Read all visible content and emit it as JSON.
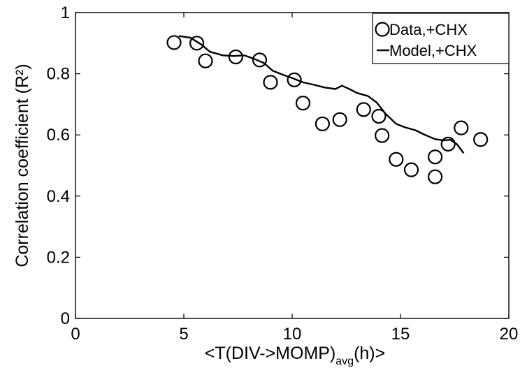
{
  "chart_data": {
    "type": "scatter",
    "title": "",
    "xlabel_main": "<T(DIV->MOMP)",
    "xlabel_sub": "avg",
    "xlabel_tail": "(h)>",
    "ylabel": "Correlation coefficient (R²)",
    "xlim": [
      0,
      20
    ],
    "ylim": [
      0,
      1
    ],
    "x_ticks": [
      0,
      5,
      10,
      15,
      20
    ],
    "y_ticks": [
      0,
      0.2,
      0.4,
      0.6,
      0.8,
      1
    ],
    "x_tick_labels": [
      "0",
      "5",
      "10",
      "15",
      "20"
    ],
    "y_tick_labels": [
      "0",
      "0.2",
      "0.4",
      "0.6",
      "0.8",
      "1"
    ],
    "grid": false,
    "legend": {
      "placement": "top-right",
      "entries": [
        {
          "label": "Data,+CHX",
          "marker": "circle"
        },
        {
          "label": "Model,+CHX",
          "marker": "line"
        }
      ]
    },
    "series": [
      {
        "name": "Data,+CHX",
        "type": "scatter",
        "points": [
          [
            4.55,
            0.902
          ],
          [
            5.6,
            0.9
          ],
          [
            6.0,
            0.842
          ],
          [
            7.4,
            0.855
          ],
          [
            8.5,
            0.845
          ],
          [
            9.0,
            0.772
          ],
          [
            10.1,
            0.78
          ],
          [
            10.5,
            0.704
          ],
          [
            11.4,
            0.636
          ],
          [
            12.2,
            0.65
          ],
          [
            13.3,
            0.683
          ],
          [
            14.0,
            0.661
          ],
          [
            14.15,
            0.598
          ],
          [
            14.8,
            0.52
          ],
          [
            15.5,
            0.486
          ],
          [
            16.6,
            0.528
          ],
          [
            16.6,
            0.463
          ],
          [
            17.2,
            0.57
          ],
          [
            17.8,
            0.623
          ],
          [
            18.7,
            0.585
          ]
        ]
      },
      {
        "name": "Model,+CHX",
        "type": "line",
        "points": [
          [
            4.8,
            0.923
          ],
          [
            5.3,
            0.918
          ],
          [
            5.8,
            0.896
          ],
          [
            6.2,
            0.872
          ],
          [
            6.8,
            0.86
          ],
          [
            7.3,
            0.858
          ],
          [
            7.8,
            0.86
          ],
          [
            8.2,
            0.85
          ],
          [
            8.7,
            0.835
          ],
          [
            9.1,
            0.81
          ],
          [
            9.6,
            0.796
          ],
          [
            10.0,
            0.786
          ],
          [
            10.5,
            0.772
          ],
          [
            11.0,
            0.764
          ],
          [
            11.5,
            0.755
          ],
          [
            12.0,
            0.75
          ],
          [
            12.3,
            0.761
          ],
          [
            12.7,
            0.748
          ],
          [
            13.0,
            0.737
          ],
          [
            13.5,
            0.727
          ],
          [
            13.9,
            0.706
          ],
          [
            14.3,
            0.67
          ],
          [
            14.8,
            0.636
          ],
          [
            15.2,
            0.625
          ],
          [
            15.7,
            0.615
          ],
          [
            16.1,
            0.601
          ],
          [
            16.6,
            0.586
          ],
          [
            17.0,
            0.582
          ],
          [
            17.3,
            0.584
          ],
          [
            17.6,
            0.57
          ],
          [
            17.9,
            0.542
          ]
        ]
      }
    ]
  }
}
